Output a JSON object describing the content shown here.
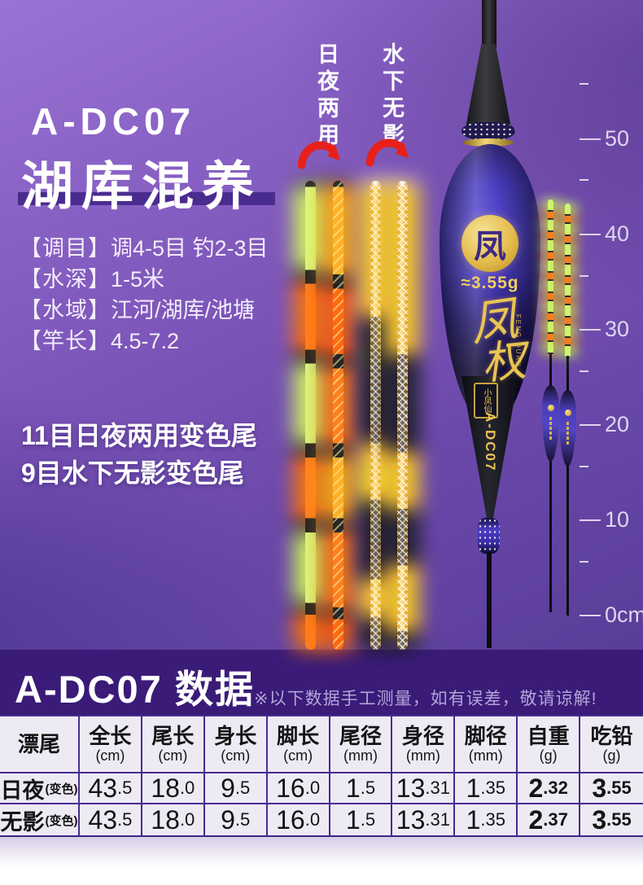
{
  "colors": {
    "bg_purple": "#7a52b8",
    "section_dark": "#3a1b78",
    "accent_gold": "#e9c453",
    "tail_green": "#d9f77e",
    "tail_orange": "#ff7f1e",
    "tail_yellow": "#ffd24a",
    "arrow_red": "#e7211a",
    "table_border": "#4a2a92",
    "table_bg": "#edeaf4"
  },
  "hero": {
    "model": "A-DC07",
    "title": "湖库混养",
    "specs": [
      {
        "label": "【调目】",
        "value": "调4-5目 钓2-3目"
      },
      {
        "label": "【水深】",
        "value": "1-5米"
      },
      {
        "label": "【水域】",
        "value": "江河/湖库/池塘"
      },
      {
        "label": "【竿长】",
        "value": "4.5-7.2"
      }
    ],
    "features": [
      "11目日夜两用变色尾",
      "9目水下无影变色尾"
    ],
    "tail_label_day_night": "日夜两用",
    "tail_label_underwater": "水下无影"
  },
  "float_art": {
    "logo_glyph": "凤",
    "weight": "≈3.55g",
    "brand_char_1": "凤",
    "brand_char_2": "权",
    "brand_latin": "FENG QUAN",
    "seal": "小凤仙",
    "model_vertical": "A-DC07"
  },
  "ruler": {
    "major_labels": [
      "50",
      "40",
      "30",
      "20",
      "10",
      "0cm"
    ]
  },
  "data_section": {
    "title": "A-DC07 数据",
    "note": "※以下数据手工测量，如有误差，敬请谅解!",
    "table": {
      "columns": [
        {
          "name": "漂尾",
          "unit": ""
        },
        {
          "name": "全长",
          "unit": "(cm)"
        },
        {
          "name": "尾长",
          "unit": "(cm)"
        },
        {
          "name": "身长",
          "unit": "(cm)"
        },
        {
          "name": "脚长",
          "unit": "(cm)"
        },
        {
          "name": "尾径",
          "unit": "(mm)"
        },
        {
          "name": "身径",
          "unit": "(mm)"
        },
        {
          "name": "脚径",
          "unit": "(mm)"
        },
        {
          "name": "自重",
          "unit": "(g)"
        },
        {
          "name": "吃铅",
          "unit": "(g)"
        }
      ],
      "rows": [
        {
          "label": "日夜",
          "note": "(变色)",
          "values": [
            "43.5",
            "18.0",
            "9.5",
            "16.0",
            "1.5",
            "13.31",
            "1.35",
            "2.32",
            "3.55"
          ]
        },
        {
          "label": "无影",
          "note": "(变色)",
          "values": [
            "43.5",
            "18.0",
            "9.5",
            "16.0",
            "1.5",
            "13.31",
            "1.35",
            "2.37",
            "3.55"
          ]
        }
      ]
    }
  }
}
